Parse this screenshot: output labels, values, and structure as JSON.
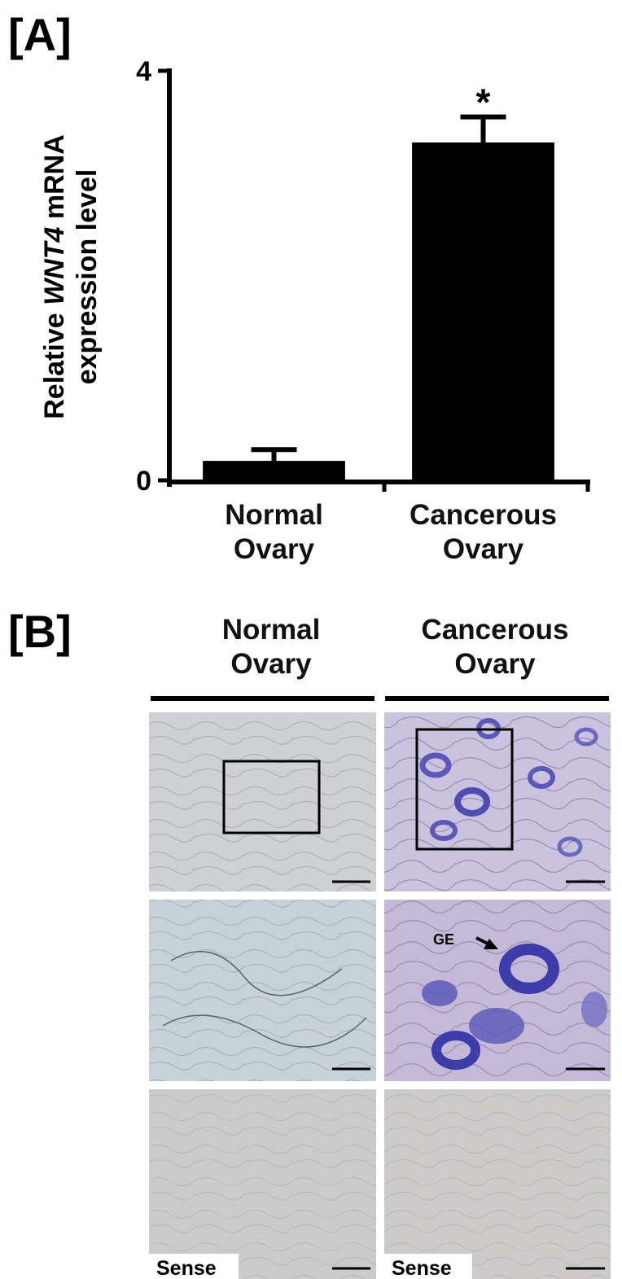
{
  "chart_data": {
    "type": "bar",
    "panel_label": "[A]",
    "ylabel_parts": [
      "Relative",
      "WNT4",
      "mRNA",
      "expression level"
    ],
    "categories": [
      "Normal Ovary",
      "Cancerous Ovary"
    ],
    "values": [
      0.19,
      3.3
    ],
    "errors": [
      0.11,
      0.25
    ],
    "color": "#000000",
    "ylim": [
      0,
      4
    ],
    "yticks": [
      0,
      4
    ],
    "annotations": [
      {
        "text": "*",
        "category": 1
      }
    ]
  },
  "panel_b": {
    "label": "[B]",
    "columns": [
      "Normal Ovary",
      "Cancerous Ovary"
    ],
    "arrow_label": "GE",
    "sense_labels": [
      "Sense",
      "Sense"
    ]
  }
}
